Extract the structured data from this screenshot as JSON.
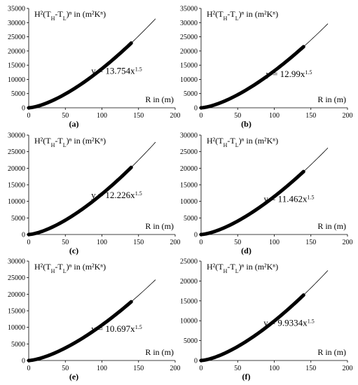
{
  "chart_data": [
    {
      "type": "line",
      "panel_label": "(a)",
      "ylabel": "H²(T_H-T_L)ⁿ in (m²Kⁿ)",
      "xlabel": "R in (m)",
      "equation": "y = 13.754x^1.5",
      "coef": 13.754,
      "exponent": 1.5,
      "xlim": [
        0,
        200
      ],
      "ylim": [
        0,
        35000
      ],
      "xticks": [
        0,
        50,
        100,
        150,
        200
      ],
      "yticks": [
        0,
        5000,
        10000,
        15000,
        20000,
        25000,
        30000,
        35000
      ],
      "series": [
        {
          "role": "data",
          "x_range": [
            0,
            140
          ]
        },
        {
          "role": "trendline",
          "x_range": [
            0,
            173
          ]
        }
      ]
    },
    {
      "type": "line",
      "panel_label": "(b)",
      "ylabel": "H²(T_H-T_L)ⁿ in (m²Kⁿ)",
      "xlabel": "R in (m)",
      "equation": "y = 12.99x^1.5",
      "coef": 12.99,
      "exponent": 1.5,
      "xlim": [
        0,
        200
      ],
      "ylim": [
        0,
        35000
      ],
      "xticks": [
        0,
        50,
        100,
        150,
        200
      ],
      "yticks": [
        0,
        5000,
        10000,
        15000,
        20000,
        25000,
        30000,
        35000
      ],
      "series": [
        {
          "role": "data",
          "x_range": [
            0,
            140
          ]
        },
        {
          "role": "trendline",
          "x_range": [
            0,
            173
          ]
        }
      ]
    },
    {
      "type": "line",
      "panel_label": "(c)",
      "ylabel": "H²(T_H-T_L)ⁿ in (m²Kⁿ)",
      "xlabel": "R in (m)",
      "equation": "y = 12.226x^1.5",
      "coef": 12.226,
      "exponent": 1.5,
      "xlim": [
        0,
        200
      ],
      "ylim": [
        0,
        30000
      ],
      "xticks": [
        0,
        50,
        100,
        150,
        200
      ],
      "yticks": [
        0,
        5000,
        10000,
        15000,
        20000,
        25000,
        30000
      ],
      "series": [
        {
          "role": "data",
          "x_range": [
            0,
            140
          ]
        },
        {
          "role": "trendline",
          "x_range": [
            0,
            173
          ]
        }
      ]
    },
    {
      "type": "line",
      "panel_label": "(d)",
      "ylabel": "H²(T_H-T_L)ⁿ in (m²Kⁿ)",
      "xlabel": "R in (m)",
      "equation": "y = 11.462x^1.5",
      "coef": 11.462,
      "exponent": 1.5,
      "xlim": [
        0,
        200
      ],
      "ylim": [
        0,
        30000
      ],
      "xticks": [
        0,
        50,
        100,
        150,
        200
      ],
      "yticks": [
        0,
        5000,
        10000,
        15000,
        20000,
        25000,
        30000
      ],
      "series": [
        {
          "role": "data",
          "x_range": [
            0,
            140
          ]
        },
        {
          "role": "trendline",
          "x_range": [
            0,
            173
          ]
        }
      ]
    },
    {
      "type": "line",
      "panel_label": "(e)",
      "ylabel": "H²(T_H-T_L)ⁿ in (m²Kⁿ)",
      "xlabel": "R in (m)",
      "equation": "y = 10.697x^1.5",
      "coef": 10.697,
      "exponent": 1.5,
      "xlim": [
        0,
        200
      ],
      "ylim": [
        0,
        30000
      ],
      "xticks": [
        0,
        50,
        100,
        150,
        200
      ],
      "yticks": [
        0,
        5000,
        10000,
        15000,
        20000,
        25000,
        30000
      ],
      "series": [
        {
          "role": "data",
          "x_range": [
            0,
            140
          ]
        },
        {
          "role": "trendline",
          "x_range": [
            0,
            173
          ]
        }
      ]
    },
    {
      "type": "line",
      "panel_label": "(f)",
      "ylabel": "H²(T_H-T_L)ⁿ in (m²Kⁿ)",
      "xlabel": "R in (m)",
      "equation": "y = 9.9334x^1.5",
      "coef": 9.9334,
      "exponent": 1.5,
      "xlim": [
        0,
        200
      ],
      "ylim": [
        0,
        25000
      ],
      "xticks": [
        0,
        50,
        100,
        150,
        200
      ],
      "yticks": [
        0,
        5000,
        10000,
        15000,
        20000,
        25000
      ],
      "series": [
        {
          "role": "data",
          "x_range": [
            0,
            140
          ]
        },
        {
          "role": "trendline",
          "x_range": [
            0,
            173
          ]
        }
      ]
    }
  ]
}
